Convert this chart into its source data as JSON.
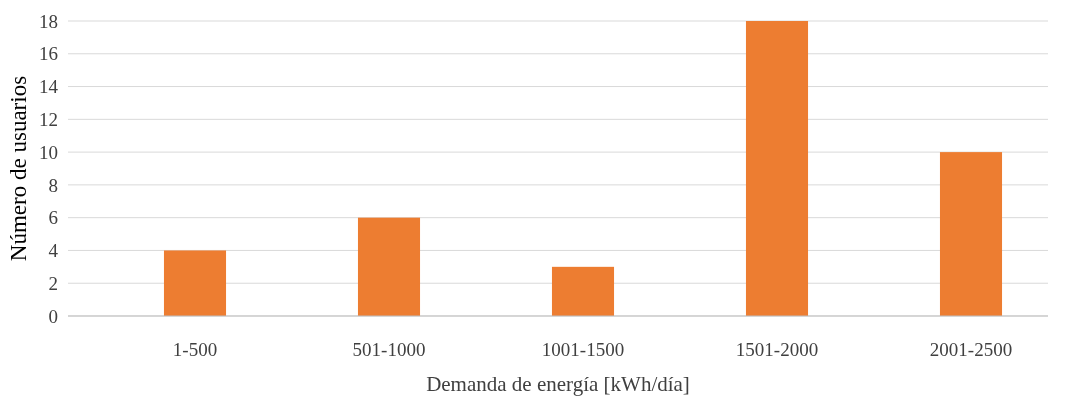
{
  "chart_data": {
    "type": "bar",
    "xlabel": "Demanda de energía [kWh/día]",
    "ylabel": "Número de usuarios",
    "categories": [
      "1-500",
      "501-1000",
      "1001-1500",
      "1501-2000",
      "2001-2500"
    ],
    "values": [
      4,
      6,
      3,
      18,
      10
    ],
    "color": "#ed7d31",
    "ylim": [
      0,
      18
    ],
    "yticks": [
      0,
      2,
      4,
      6,
      8,
      10,
      12,
      14,
      16,
      18
    ],
    "grid": "y"
  }
}
